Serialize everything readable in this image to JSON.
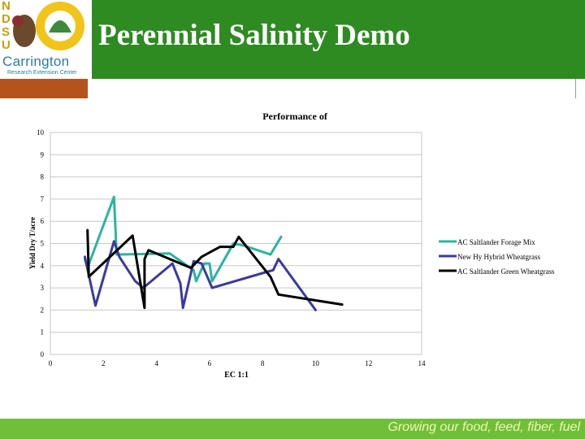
{
  "slide": {
    "title": "Perennial Salinity Demo",
    "footer": "Growing our food, feed, fiber, fuel",
    "logo": {
      "letters": [
        "N",
        "D",
        "S",
        "U"
      ],
      "name": "Carrington",
      "subtitle": "Research Extension Center"
    }
  },
  "colors": {
    "header_green": "#2e8b22",
    "accent_rust": "#b5531e",
    "footer_green": "#6fbf3a",
    "footer_text": "#f4f4b0"
  },
  "chart_data": {
    "type": "line",
    "title": "Performance of",
    "xlabel": "EC 1:1",
    "ylabel": "Yield Dry T/acre",
    "xlim": [
      0,
      14
    ],
    "ylim": [
      0,
      10
    ],
    "xticks": [
      0,
      2,
      4,
      6,
      8,
      10,
      12,
      14
    ],
    "yticks": [
      0,
      1,
      2,
      3,
      4,
      5,
      6,
      7,
      8,
      9,
      10
    ],
    "grid": true,
    "legend_position": "right",
    "series": [
      {
        "name": "AC Saltlander Forage Mix",
        "color": "#2ab5a0",
        "points": [
          [
            1.3,
            4.3
          ],
          [
            1.4,
            3.9
          ],
          [
            2.4,
            7.1
          ],
          [
            2.5,
            4.5
          ],
          [
            4.5,
            4.55
          ],
          [
            4.8,
            4.3
          ],
          [
            5.4,
            3.8
          ],
          [
            5.5,
            3.3
          ],
          [
            5.8,
            4.1
          ],
          [
            6.0,
            4.1
          ],
          [
            6.1,
            3.3
          ],
          [
            6.9,
            5.0
          ],
          [
            7.3,
            4.9
          ],
          [
            8.3,
            4.5
          ],
          [
            8.7,
            5.3
          ]
        ]
      },
      {
        "name": "New Hy Hybrid Wheatgrass",
        "color": "#3a3aa0",
        "points": [
          [
            1.3,
            4.4
          ],
          [
            1.7,
            2.2
          ],
          [
            2.4,
            5.1
          ],
          [
            2.6,
            4.4
          ],
          [
            3.2,
            3.3
          ],
          [
            3.5,
            3.0
          ],
          [
            4.6,
            4.1
          ],
          [
            4.9,
            3.2
          ],
          [
            5.0,
            2.1
          ],
          [
            5.4,
            4.2
          ],
          [
            5.7,
            4.1
          ],
          [
            6.1,
            3.0
          ],
          [
            8.1,
            3.7
          ],
          [
            8.4,
            3.8
          ],
          [
            8.6,
            4.3
          ],
          [
            10.0,
            2.0
          ]
        ]
      },
      {
        "name": "AC Saltlander Green Wheatgrass",
        "color": "#000000",
        "points": [
          [
            1.4,
            5.6
          ],
          [
            1.45,
            3.5
          ],
          [
            3.1,
            5.35
          ],
          [
            3.55,
            2.1
          ],
          [
            3.55,
            4.3
          ],
          [
            3.7,
            4.7
          ],
          [
            5.3,
            3.9
          ],
          [
            5.7,
            4.4
          ],
          [
            6.4,
            4.85
          ],
          [
            6.9,
            4.85
          ],
          [
            7.1,
            5.3
          ],
          [
            8.3,
            3.5
          ],
          [
            8.6,
            2.7
          ],
          [
            11.0,
            2.25
          ]
        ]
      }
    ]
  }
}
